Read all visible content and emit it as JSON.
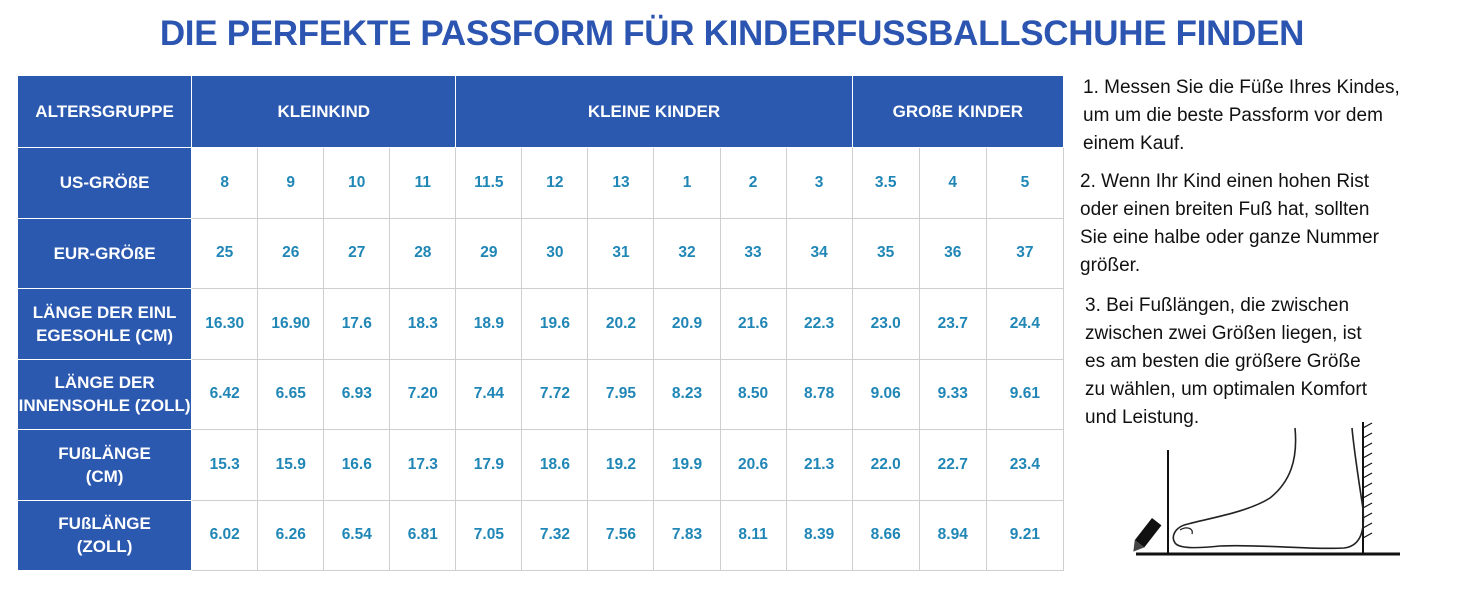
{
  "title": "DIE PERFEKTE PASSFORM FÜR KINDERFUSSBALLSCHUHE FINDEN",
  "table": {
    "header": {
      "corner": "ALTERSGRUPPE",
      "groups": [
        "KLEINKIND",
        "KLEINE KINDER",
        "GROßE KINDER"
      ]
    },
    "rows": [
      {
        "label": [
          "US-GRÖßE"
        ],
        "values": [
          "8",
          "9",
          "10",
          "11",
          "11.5",
          "12",
          "13",
          "1",
          "2",
          "3",
          "3.5",
          "4",
          "5"
        ]
      },
      {
        "label": [
          "EUR-GRÖßE"
        ],
        "values": [
          "25",
          "26",
          "27",
          "28",
          "29",
          "30",
          "31",
          "32",
          "33",
          "34",
          "35",
          "36",
          "37"
        ]
      },
      {
        "label": [
          "LÄNGE DER EINL",
          "EGESOHLE (CM)"
        ],
        "values": [
          "16.30",
          "16.90",
          "17.6",
          "18.3",
          "18.9",
          "19.6",
          "20.2",
          "20.9",
          "21.6",
          "22.3",
          "23.0",
          "23.7",
          "24.4"
        ]
      },
      {
        "label": [
          "LÄNGE DER",
          "INNENSOHLE (ZOLL)"
        ],
        "values": [
          "6.42",
          "6.65",
          "6.93",
          "7.20",
          "7.44",
          "7.72",
          "7.95",
          "8.23",
          "8.50",
          "8.78",
          "9.06",
          "9.33",
          "9.61"
        ]
      },
      {
        "label": [
          "FUßLÄNGE",
          "(CM)"
        ],
        "values": [
          "15.3",
          "15.9",
          "16.6",
          "17.3",
          "17.9",
          "18.6",
          "19.2",
          "19.9",
          "20.6",
          "21.3",
          "22.0",
          "22.7",
          "23.4"
        ]
      },
      {
        "label": [
          "FUßLÄNGE",
          "(ZOLL)"
        ],
        "values": [
          "6.02",
          "6.26",
          "6.54",
          "6.81",
          "7.05",
          "7.32",
          "7.56",
          "7.83",
          "8.11",
          "8.39",
          "8.66",
          "8.94",
          "9.21"
        ]
      }
    ]
  },
  "notes": {
    "note1": [
      "1. Messen Sie die Füße Ihres Kindes,",
      "um um die beste Passform vor dem",
      "einem Kauf."
    ],
    "note2": [
      "2. Wenn Ihr Kind einen hohen Rist",
      "oder einen breiten Fuß hat, sollten",
      "Sie eine halbe oder ganze Nummer",
      "größer."
    ],
    "note3": [
      "3. Bei Fußlängen, die zwischen",
      "zwischen zwei Größen liegen, ist",
      "es am besten die größere Größe",
      "zu wählen, um optimalen Komfort",
      "und Leistung."
    ]
  },
  "colors": {
    "header_blue": "#2c59b0",
    "title_blue": "#2b55b0",
    "value_teal": "#1f86b6"
  },
  "illustration": {
    "icons": [
      "foot-outline-icon",
      "pencil-icon",
      "wall-icon"
    ]
  }
}
